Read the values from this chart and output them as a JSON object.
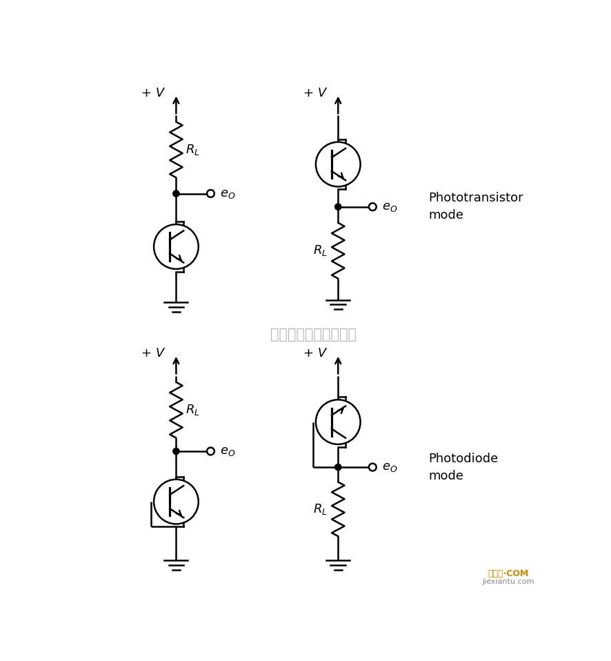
{
  "bg_color": "#ffffff",
  "line_color": "#000000",
  "line_width": 1.8,
  "label_phototransistor": "Phototransistor\nmode",
  "label_photodiode": "Photodiode\nmode",
  "watermark": "杭州将睿科技有限公司",
  "watermark_color": "#aaaaaa",
  "logo_text": "接线图·COM\njiexiantu.com",
  "logo_color": "#cc8800"
}
